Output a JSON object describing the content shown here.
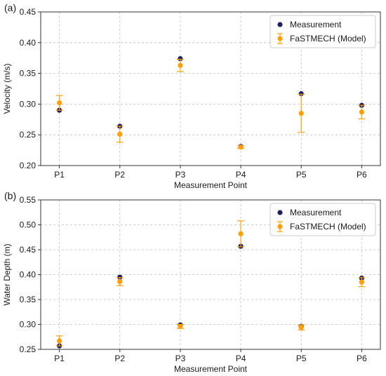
{
  "chart_data": [
    {
      "type": "scatter",
      "panel_label": "(a)",
      "xlabel": "Measurement Point",
      "ylabel": "Velocity (m/s)",
      "categories": [
        "P1",
        "P2",
        "P3",
        "P4",
        "P5",
        "P6"
      ],
      "ylim": [
        0.2,
        0.45
      ],
      "yticks": [
        "0.20",
        "0.25",
        "0.30",
        "0.35",
        "0.40",
        "0.45"
      ],
      "grid": true,
      "legend_position": "top-right",
      "series": [
        {
          "name": "Measurement",
          "color": "#1f1f66",
          "marker": "circle",
          "values": [
            0.29,
            0.264,
            0.374,
            0.231,
            0.317,
            0.298
          ]
        },
        {
          "name": "FaSTMECH (Model)",
          "color": "#ff9f0a",
          "marker": "circle-errorbar",
          "values": [
            0.302,
            0.251,
            0.363,
            0.23,
            0.285,
            0.287
          ],
          "errors": [
            0.012,
            0.013,
            0.01,
            0.002,
            0.031,
            0.011
          ]
        }
      ]
    },
    {
      "type": "scatter",
      "panel_label": "(b)",
      "xlabel": "Measurement Point",
      "ylabel": "Water Depth (m)",
      "categories": [
        "P1",
        "P2",
        "P3",
        "P4",
        "P5",
        "P6"
      ],
      "ylim": [
        0.25,
        0.55
      ],
      "yticks": [
        "0.25",
        "0.30",
        "0.35",
        "0.40",
        "0.45",
        "0.50",
        "0.55"
      ],
      "grid": true,
      "legend_position": "top-right",
      "series": [
        {
          "name": "Measurement",
          "color": "#1f1f66",
          "marker": "circle",
          "values": [
            0.257,
            0.395,
            0.299,
            0.457,
            0.296,
            0.393
          ]
        },
        {
          "name": "FaSTMECH (Model)",
          "color": "#ff9f0a",
          "marker": "circle-errorbar",
          "values": [
            0.267,
            0.386,
            0.296,
            0.482,
            0.294,
            0.385
          ],
          "errors": [
            0.01,
            0.008,
            0.004,
            0.026,
            0.005,
            0.009
          ]
        }
      ]
    }
  ]
}
